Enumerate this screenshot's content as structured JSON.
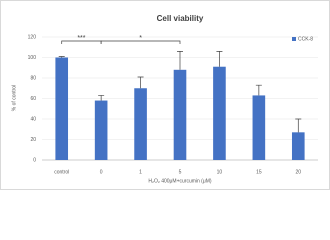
{
  "chart_data": {
    "type": "bar",
    "title": "Cell viability",
    "x_label": "H₂O₂ 400μM+curcumin (μM)",
    "y_label": "% of control",
    "categories": [
      "control",
      "0",
      "1",
      "5",
      "10",
      "15",
      "20"
    ],
    "series": [
      {
        "name": "CCK-8",
        "color": "#4472c4",
        "values": [
          100,
          58,
          70,
          88,
          91,
          63,
          27
        ],
        "errors": [
          1,
          5,
          11,
          18,
          15,
          10,
          13
        ]
      }
    ],
    "ylim": [
      0,
      120
    ],
    "yticks": [
      0,
      20,
      40,
      60,
      80,
      100,
      120
    ],
    "grid": true,
    "legend": "top-right",
    "significance": [
      {
        "label": "***",
        "pair": [
          "control",
          "0"
        ]
      },
      {
        "label": "*",
        "pair": [
          "0",
          "5"
        ]
      }
    ]
  }
}
